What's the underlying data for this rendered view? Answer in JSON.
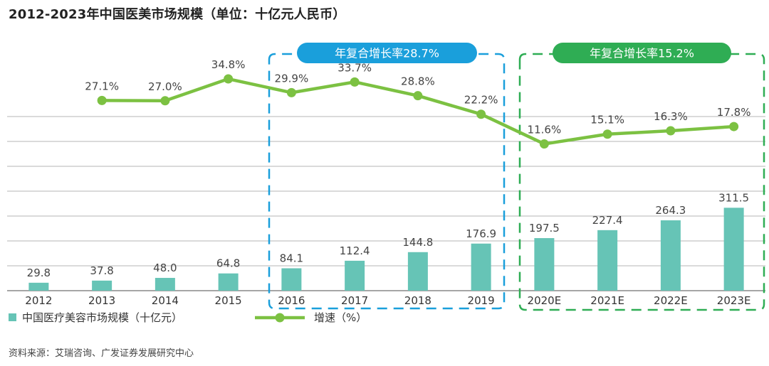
{
  "title": "2012-2023年中国医美市场规模（单位：十亿元人民币）",
  "source": "资料来源：艾瑞咨询、广发证券发展研究中心",
  "colors": {
    "bar": "#66c4b6",
    "line": "#7cc142",
    "blue_box": "#1a9fdb",
    "green_box": "#2fad54",
    "grid": "#b5b5b5"
  },
  "callouts": {
    "blue": "年复合增长率28.7%",
    "green": "年复合增长率15.2%"
  },
  "chart_data": {
    "type": "bar",
    "title": "2012-2023年中国医美市场规模（单位：十亿元人民币）",
    "categories": [
      "2012",
      "2013",
      "2014",
      "2015",
      "2016",
      "2017",
      "2018",
      "2019",
      "2020E",
      "2021E",
      "2022E",
      "2023E"
    ],
    "series": [
      {
        "name": "中国医疗美容市场规模（十亿元）",
        "type": "bar",
        "values": [
          29.8,
          37.8,
          48.0,
          64.8,
          84.1,
          112.4,
          144.8,
          176.9,
          197.5,
          227.4,
          264.3,
          311.5
        ],
        "labels": [
          "29.8",
          "37.8",
          "48.0",
          "64.8",
          "84.1",
          "112.4",
          "144.8",
          "176.9",
          "197.5",
          "227.4",
          "264.3",
          "311.5"
        ]
      },
      {
        "name": "增速（%）",
        "type": "line",
        "values": [
          null,
          27.1,
          27.0,
          34.8,
          29.9,
          33.7,
          28.8,
          22.2,
          11.6,
          15.1,
          16.3,
          17.8
        ],
        "labels": [
          "",
          "27.1%",
          "27.0%",
          "34.8%",
          "29.9%",
          "33.7%",
          "28.8%",
          "22.2%",
          "11.6%",
          "15.1%",
          "16.3%",
          "17.8%"
        ]
      }
    ],
    "ylim_bar": [
      0,
      350
    ],
    "grid": true,
    "legend_position": "bottom-left"
  }
}
